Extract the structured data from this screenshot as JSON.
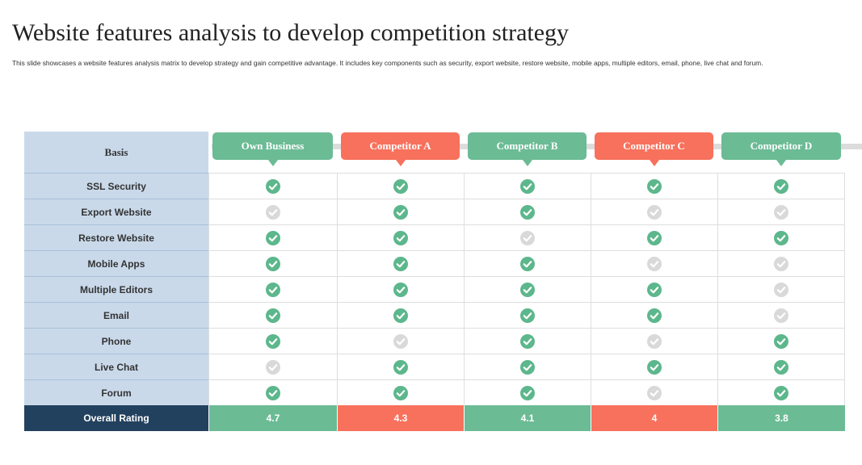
{
  "title": "Website features analysis to develop competition strategy",
  "subtitle": "This slide showcases a website features analysis matrix to develop strategy and gain competitive advantage. It includes key components such as security, export website, restore website, mobile apps, multiple editors, email, phone, live chat and forum.",
  "table": {
    "header": "Basis",
    "columns": [
      {
        "name": "Own Business",
        "color": "#6bbb95"
      },
      {
        "name": "Competitor A",
        "color": "#f7715c"
      },
      {
        "name": "Competitor B",
        "color": "#6bbb95"
      },
      {
        "name": "Competitor C",
        "color": "#f7715c"
      },
      {
        "name": "Competitor D",
        "color": "#6bbb95"
      }
    ],
    "rows": [
      {
        "label": "SSL Security",
        "checks": [
          true,
          true,
          true,
          true,
          true
        ]
      },
      {
        "label": "Export Website",
        "checks": [
          false,
          true,
          true,
          false,
          false
        ]
      },
      {
        "label": "Restore Website",
        "checks": [
          true,
          true,
          false,
          true,
          true
        ]
      },
      {
        "label": "Mobile Apps",
        "checks": [
          true,
          true,
          true,
          false,
          false
        ]
      },
      {
        "label": "Multiple Editors",
        "checks": [
          true,
          true,
          true,
          true,
          false
        ]
      },
      {
        "label": "Email",
        "checks": [
          true,
          true,
          true,
          true,
          false
        ]
      },
      {
        "label": "Phone",
        "checks": [
          true,
          false,
          true,
          false,
          true
        ]
      },
      {
        "label": "Live Chat",
        "checks": [
          false,
          true,
          true,
          true,
          true
        ]
      },
      {
        "label": "Forum",
        "checks": [
          true,
          true,
          true,
          false,
          true
        ]
      }
    ],
    "rating": {
      "label": "Overall Rating",
      "values": [
        4.7,
        4.3,
        4.1,
        4,
        3.8
      ]
    }
  }
}
